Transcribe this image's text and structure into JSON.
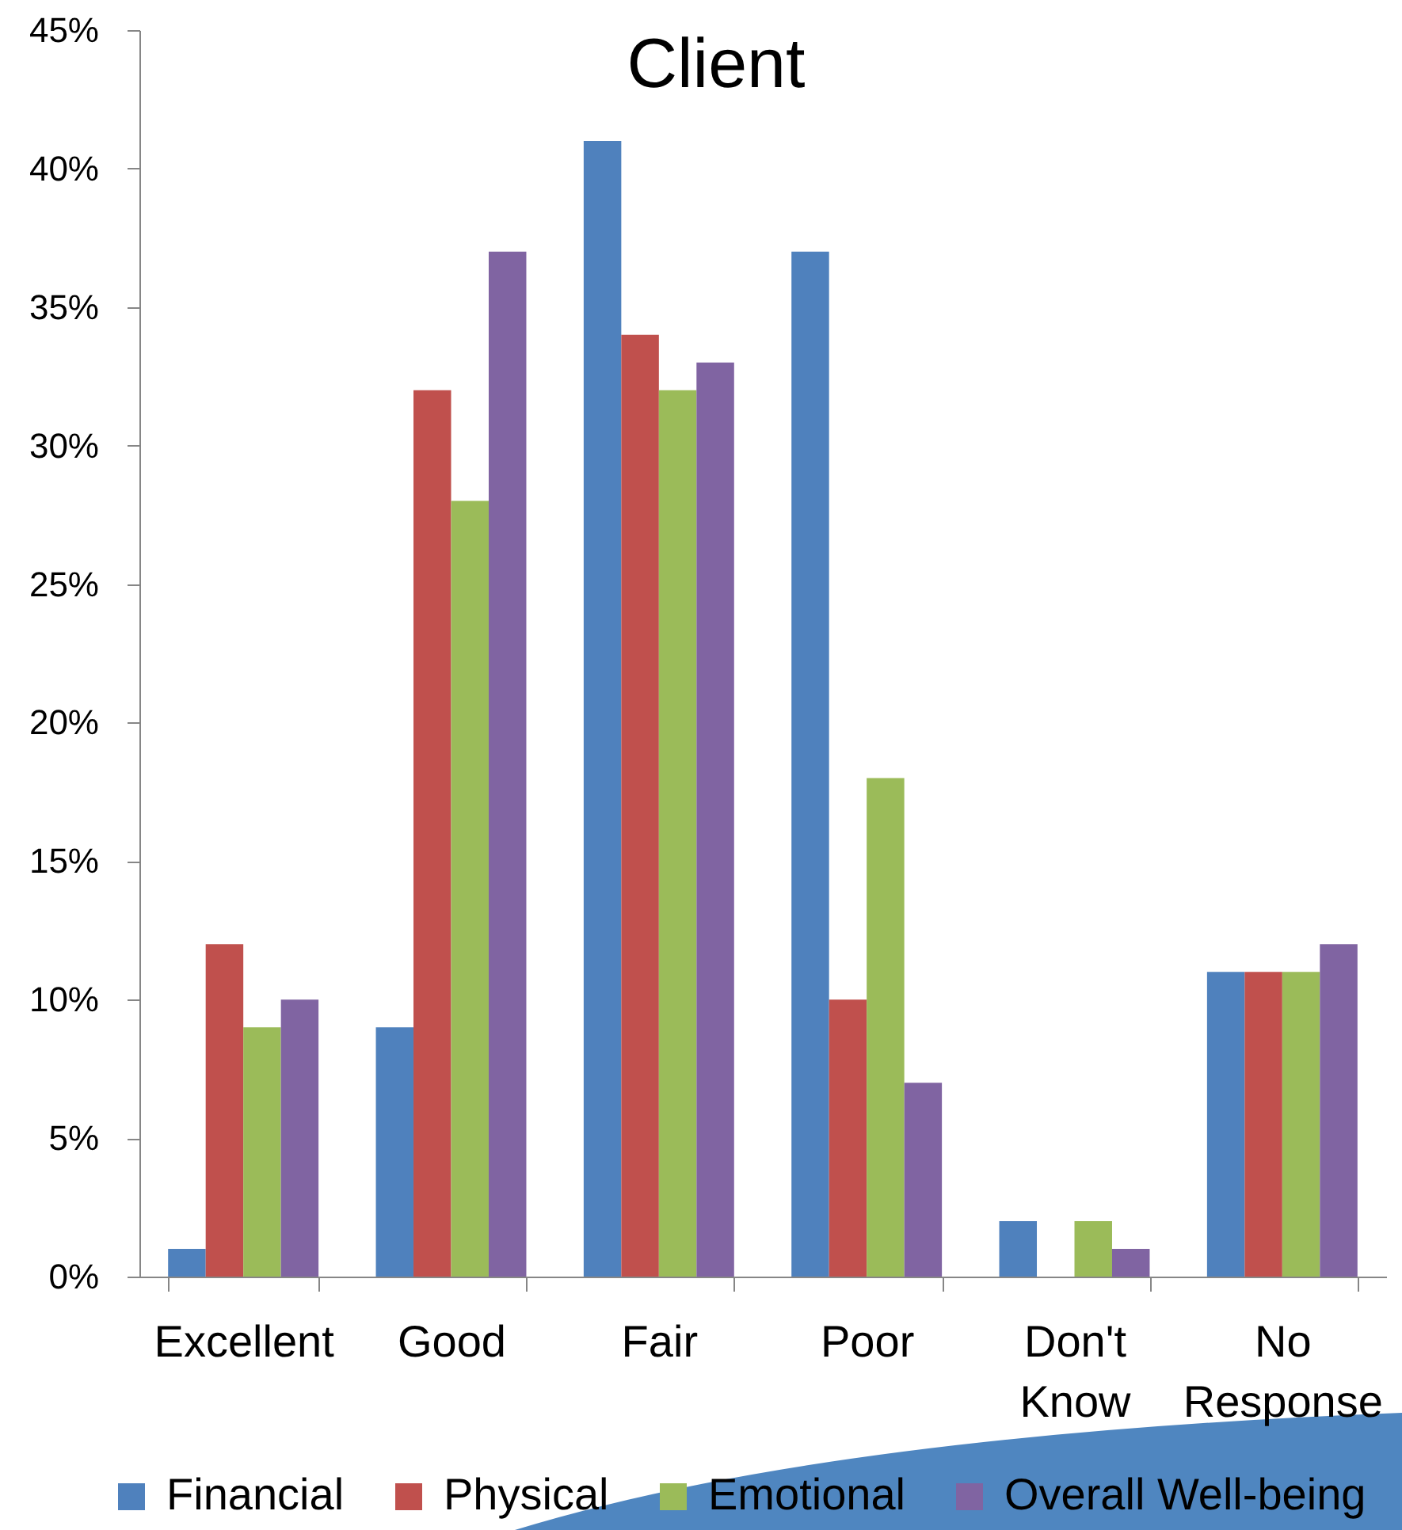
{
  "chart_data": {
    "type": "bar",
    "title": "Client",
    "categories": [
      "Excellent",
      "Good",
      "Fair",
      "Poor",
      "Don't Know",
      "No Response"
    ],
    "series": [
      {
        "name": "Financial",
        "color": "#4f81bd",
        "values": [
          1,
          9,
          41,
          37,
          2,
          11
        ]
      },
      {
        "name": "Physical",
        "color": "#c0504d",
        "values": [
          12,
          32,
          34,
          10,
          null,
          11
        ]
      },
      {
        "name": "Emotional",
        "color": "#9bbb59",
        "values": [
          9,
          28,
          32,
          18,
          2,
          11
        ]
      },
      {
        "name": "Overall Well-being",
        "color": "#8064a2",
        "values": [
          10,
          37,
          33,
          7,
          1,
          12
        ]
      }
    ],
    "ylim": [
      0,
      45
    ],
    "yticks": [
      {
        "value": 0,
        "label": "0%"
      },
      {
        "value": 5,
        "label": "5%"
      },
      {
        "value": 10,
        "label": "10%"
      },
      {
        "value": 15,
        "label": "15%"
      },
      {
        "value": 20,
        "label": "20%"
      },
      {
        "value": 25,
        "label": "25%"
      },
      {
        "value": 30,
        "label": "30%"
      },
      {
        "value": 35,
        "label": "35%"
      },
      {
        "value": 40,
        "label": "40%"
      },
      {
        "value": 45,
        "label": "45%"
      }
    ],
    "legend": "bottom"
  }
}
